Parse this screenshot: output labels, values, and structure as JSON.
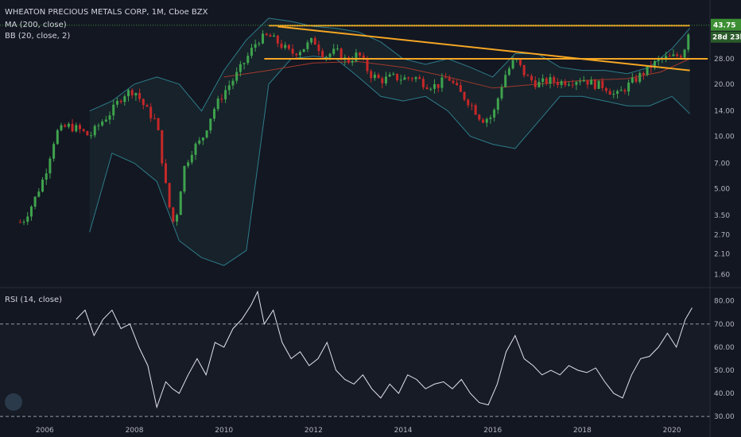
{
  "header": {
    "symbol_line": "WHEATON PRECIOUS METALS CORP, 1M, Cboe BZX",
    "ma_label": "MA (200, close)",
    "bb_label": "BB (20, close, 2)",
    "rsi_label": "RSI (14, close)"
  },
  "colors": {
    "background": "#131722",
    "up": "#26a69a",
    "up_fill": "#3fa34d",
    "down": "#c62828",
    "ma": "#a1392b",
    "bb": "#2e7d8a",
    "trend": "#f5a623",
    "rsi": "#e0e3eb",
    "badge_price": "#3c8f33"
  },
  "badges": {
    "price": "43.75",
    "countdown": "28d 23h"
  },
  "chart_data": [
    {
      "type": "candlestick",
      "scale": "log",
      "ylim": [
        1.4,
        55
      ],
      "price_ticks": [
        "43.75",
        "28.00",
        "20.00",
        "14.00",
        "10.00",
        "7.00",
        "5.00",
        "3.50",
        "2.70",
        "2.10",
        "1.60"
      ],
      "price_tick_values": [
        43.75,
        28,
        20,
        14,
        10,
        7,
        5,
        3.5,
        2.7,
        2.1,
        1.6
      ],
      "x_ticks": [
        "2006",
        "2008",
        "2010",
        "2012",
        "2014",
        "2016",
        "2018",
        "2020"
      ],
      "x_tick_values": [
        2006,
        2008,
        2010,
        2012,
        2014,
        2016,
        2018,
        2020
      ],
      "close_series": {
        "x": [
          2005.5,
          2005.75,
          2006.0,
          2006.25,
          2006.5,
          2006.75,
          2007.0,
          2007.25,
          2007.5,
          2007.75,
          2008.0,
          2008.25,
          2008.5,
          2008.75,
          2008.9,
          2009.1,
          2009.3,
          2009.5,
          2009.75,
          2010.0,
          2010.25,
          2010.5,
          2010.75,
          2011.0,
          2011.25,
          2011.5,
          2011.75,
          2012.0,
          2012.25,
          2012.5,
          2012.75,
          2013.0,
          2013.25,
          2013.5,
          2013.75,
          2014.0,
          2014.25,
          2014.5,
          2014.75,
          2015.0,
          2015.25,
          2015.5,
          2015.75,
          2016.0,
          2016.25,
          2016.5,
          2016.75,
          2017.0,
          2017.25,
          2017.5,
          2017.75,
          2018.0,
          2018.25,
          2018.5,
          2018.75,
          2019.0,
          2019.25,
          2019.5,
          2019.75,
          2020.0,
          2020.25,
          2020.4
        ],
        "values": [
          3.2,
          4.2,
          6.0,
          10.5,
          11.5,
          11.0,
          10.0,
          12.0,
          14.0,
          17.5,
          18.5,
          14.5,
          12.0,
          4.2,
          3.0,
          6.5,
          8.5,
          9.5,
          14.0,
          18.0,
          22.0,
          28.0,
          36.0,
          38.0,
          34.0,
          30.0,
          32.0,
          36.0,
          29.0,
          31.0,
          27.0,
          30.0,
          23.0,
          21.0,
          22.0,
          21.5,
          22.0,
          20.0,
          19.5,
          22.0,
          18.0,
          15.5,
          12.5,
          13.0,
          22.0,
          28.0,
          22.0,
          20.0,
          21.0,
          20.5,
          21.0,
          21.5,
          20.0,
          19.5,
          17.0,
          19.5,
          22.0,
          25.0,
          28.0,
          28.5,
          30.0,
          43.75
        ]
      },
      "ma_200": {
        "x": [
          2010.0,
          2011.0,
          2012.0,
          2013.0,
          2014.0,
          2015.0,
          2016.0,
          2017.0,
          2018.0,
          2019.0,
          2019.75,
          2020.4
        ],
        "values": [
          22.0,
          24.0,
          26.5,
          27.0,
          25.0,
          22.0,
          19.0,
          20.0,
          21.0,
          21.5,
          23.5,
          28.0
        ]
      },
      "bb_upper": {
        "x": [
          2007.0,
          2007.5,
          2008.0,
          2008.5,
          2009.0,
          2009.5,
          2010.0,
          2010.5,
          2011.0,
          2011.5,
          2012.0,
          2012.5,
          2013.0,
          2013.5,
          2014.0,
          2014.5,
          2015.0,
          2015.5,
          2016.0,
          2016.5,
          2017.0,
          2017.5,
          2018.0,
          2018.5,
          2019.0,
          2019.5,
          2020.0,
          2020.4
        ],
        "values": [
          14.0,
          16.0,
          20.0,
          22.0,
          20.0,
          14.0,
          24.0,
          36.0,
          48.0,
          46.0,
          43.0,
          42.0,
          40.0,
          35.0,
          28.0,
          26.0,
          28.0,
          25.0,
          22.0,
          30.0,
          30.0,
          25.0,
          24.0,
          24.0,
          23.0,
          25.0,
          32.0,
          42.0
        ]
      },
      "bb_lower": {
        "x": [
          2007.0,
          2007.5,
          2008.0,
          2008.5,
          2009.0,
          2009.5,
          2010.0,
          2010.5,
          2011.0,
          2011.5,
          2012.0,
          2012.5,
          2013.0,
          2013.5,
          2014.0,
          2014.5,
          2015.0,
          2015.5,
          2016.0,
          2016.5,
          2017.0,
          2017.5,
          2018.0,
          2018.5,
          2019.0,
          2019.5,
          2020.0,
          2020.4
        ],
        "values": [
          2.8,
          8.0,
          7.0,
          5.5,
          2.5,
          2.0,
          1.8,
          2.2,
          20.0,
          28.0,
          29.0,
          28.0,
          22.0,
          17.0,
          16.0,
          17.0,
          14.0,
          10.0,
          9.0,
          8.5,
          12.0,
          17.0,
          17.0,
          16.0,
          15.0,
          15.0,
          17.0,
          13.5
        ]
      },
      "trendlines": [
        {
          "x": [
            2011.0,
            2020.4
          ],
          "values": [
            43.5,
            43.5
          ]
        },
        {
          "x": [
            2010.9,
            2020.8
          ],
          "values": [
            28.0,
            28.0
          ]
        },
        {
          "x": [
            2011.2,
            2020.4
          ],
          "values": [
            43.0,
            24.0
          ]
        }
      ]
    },
    {
      "type": "line",
      "ylabel": "",
      "ylim": [
        28,
        84
      ],
      "y_ticks": [
        "80.00",
        "70.00",
        "60.00",
        "50.00",
        "40.00",
        "30.00"
      ],
      "y_tick_values": [
        80,
        70,
        60,
        50,
        40,
        30
      ],
      "bands": [
        70,
        30
      ],
      "x": [
        2006.7,
        2006.9,
        2007.1,
        2007.3,
        2007.5,
        2007.7,
        2007.9,
        2008.1,
        2008.3,
        2008.5,
        2008.7,
        2008.85,
        2009.0,
        2009.2,
        2009.4,
        2009.6,
        2009.8,
        2010.0,
        2010.2,
        2010.4,
        2010.6,
        2010.75,
        2010.9,
        2011.1,
        2011.3,
        2011.5,
        2011.7,
        2011.9,
        2012.1,
        2012.3,
        2012.5,
        2012.7,
        2012.9,
        2013.1,
        2013.3,
        2013.5,
        2013.7,
        2013.9,
        2014.1,
        2014.3,
        2014.5,
        2014.7,
        2014.9,
        2015.1,
        2015.3,
        2015.5,
        2015.7,
        2015.9,
        2016.1,
        2016.3,
        2016.5,
        2016.7,
        2016.9,
        2017.1,
        2017.3,
        2017.5,
        2017.7,
        2017.9,
        2018.1,
        2018.3,
        2018.5,
        2018.7,
        2018.9,
        2019.1,
        2019.3,
        2019.5,
        2019.7,
        2019.9,
        2020.1,
        2020.3,
        2020.45
      ],
      "values": [
        72,
        76,
        65,
        72,
        76,
        68,
        70,
        60,
        52,
        34,
        45,
        42,
        40,
        48,
        55,
        48,
        62,
        60,
        68,
        72,
        78,
        84,
        70,
        76,
        62,
        55,
        58,
        52,
        55,
        62,
        50,
        46,
        44,
        48,
        42,
        38,
        44,
        40,
        48,
        46,
        42,
        44,
        45,
        42,
        46,
        40,
        36,
        35,
        44,
        58,
        65,
        55,
        52,
        48,
        50,
        48,
        52,
        50,
        49,
        51,
        45,
        40,
        38,
        48,
        55,
        56,
        60,
        66,
        60,
        72,
        77
      ]
    }
  ]
}
